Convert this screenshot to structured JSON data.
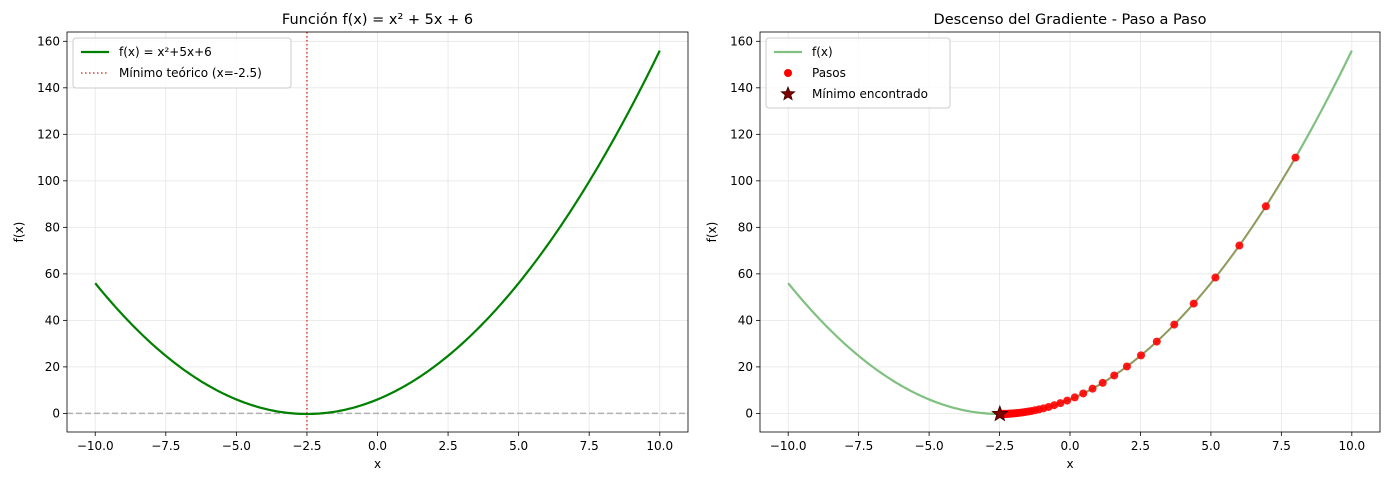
{
  "colors": {
    "curve": "#008000",
    "curve_light": "#80c080",
    "min_line": "#e0402a",
    "zero_line": "#b0b0b0",
    "steps": "#ff0000",
    "star_fill": "#800000",
    "star_edge": "#400000",
    "path_line": "#c06030"
  },
  "chart_data": [
    {
      "type": "line",
      "title": "Función f(x) = x² + 5x + 6",
      "xlabel": "x",
      "ylabel": "f(x)",
      "xlim": [
        -11,
        11
      ],
      "ylim": [
        -8,
        164
      ],
      "grid": true,
      "legend_position": "top-left",
      "xticks": [
        -10.0,
        -7.5,
        -5.0,
        -2.5,
        0.0,
        2.5,
        5.0,
        7.5,
        10.0
      ],
      "xtick_labels": [
        "−10.0",
        "−7.5",
        "−5.0",
        "−2.5",
        "0.0",
        "2.5",
        "5.0",
        "7.5",
        "10.0"
      ],
      "yticks": [
        0,
        20,
        40,
        60,
        80,
        100,
        120,
        140,
        160
      ],
      "ytick_labels": [
        "0",
        "20",
        "40",
        "60",
        "80",
        "100",
        "120",
        "140",
        "160"
      ],
      "function": {
        "a": 1,
        "b": 5,
        "c": 6,
        "x_range": [
          -10,
          10
        ]
      },
      "series": [
        {
          "name": "f(x) = x²+5x+6",
          "style": "solid",
          "color": "#008000"
        },
        {
          "name": "Mínimo teórico (x=-2.5)",
          "style": "dotted-vertical",
          "x": -2.5,
          "color": "#e0402a"
        }
      ],
      "hline_y": 0
    },
    {
      "type": "scatter",
      "title": "Descenso del Gradiente - Paso a Paso",
      "xlabel": "x",
      "ylabel": "f(x)",
      "xlim": [
        -11,
        11
      ],
      "ylim": [
        -8,
        164
      ],
      "grid": true,
      "legend_position": "top-left",
      "xticks": [
        -10.0,
        -7.5,
        -5.0,
        -2.5,
        0.0,
        2.5,
        5.0,
        7.5,
        10.0
      ],
      "xtick_labels": [
        "−10.0",
        "−7.5",
        "−5.0",
        "−2.5",
        "0.0",
        "2.5",
        "5.0",
        "7.5",
        "10.0"
      ],
      "yticks": [
        0,
        20,
        40,
        60,
        80,
        100,
        120,
        140,
        160
      ],
      "ytick_labels": [
        "0",
        "20",
        "40",
        "60",
        "80",
        "100",
        "120",
        "140",
        "160"
      ],
      "function": {
        "a": 1,
        "b": 5,
        "c": 6,
        "x_range": [
          -10,
          10
        ]
      },
      "series": [
        {
          "name": "f(x)",
          "style": "solid-light",
          "color": "#80c080"
        },
        {
          "name": "Pasos",
          "style": "points",
          "color": "#ff0000",
          "x": [
            8.0,
            6.95,
            6.01,
            5.16,
            4.39,
            3.7,
            3.08,
            2.52,
            2.02,
            1.57,
            1.16,
            0.8,
            0.47,
            0.17,
            -0.1,
            -0.34,
            -0.56,
            -0.76,
            -0.94,
            -1.1,
            -1.24,
            -1.37,
            -1.48,
            -1.59,
            -1.68,
            -1.76,
            -1.84,
            -1.9,
            -1.96,
            -2.02,
            -2.07,
            -2.11,
            -2.15,
            -2.18,
            -2.21,
            -2.24,
            -2.27,
            -2.29,
            -2.31,
            -2.33,
            -2.35,
            -2.36,
            -2.38,
            -2.39,
            -2.4,
            -2.41,
            -2.42,
            -2.43,
            -2.44,
            -2.45
          ]
        },
        {
          "name": "Mínimo encontrado",
          "style": "star",
          "x": -2.49,
          "color": "#800000"
        }
      ]
    }
  ]
}
